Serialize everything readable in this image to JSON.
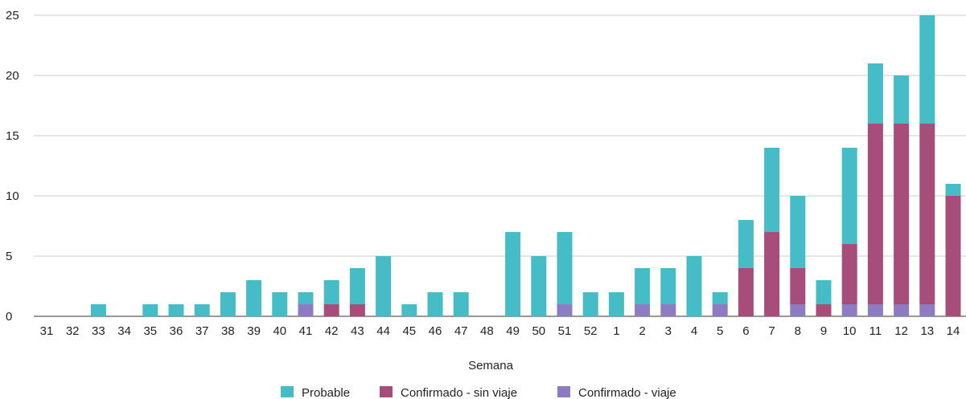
{
  "chart_data": {
    "type": "bar",
    "stacked": true,
    "categories": [
      "31",
      "32",
      "33",
      "34",
      "35",
      "36",
      "37",
      "38",
      "39",
      "40",
      "41",
      "42",
      "43",
      "44",
      "45",
      "46",
      "47",
      "48",
      "49",
      "50",
      "51",
      "52",
      "1",
      "2",
      "3",
      "4",
      "5",
      "6",
      "7",
      "8",
      "9",
      "10",
      "11",
      "12",
      "13",
      "14"
    ],
    "series": [
      {
        "name": "Confirmado - viaje",
        "color": "#8e7cc3",
        "values": [
          0,
          0,
          0,
          0,
          0,
          0,
          0,
          0,
          0,
          0,
          1,
          0,
          0,
          0,
          0,
          0,
          0,
          0,
          0,
          0,
          1,
          0,
          0,
          1,
          1,
          0,
          1,
          0,
          0,
          1,
          0,
          1,
          1,
          1,
          1,
          0
        ]
      },
      {
        "name": "Confirmado - sin viaje",
        "color": "#a64d79",
        "values": [
          0,
          0,
          0,
          0,
          0,
          0,
          0,
          0,
          0,
          0,
          0,
          1,
          1,
          0,
          0,
          0,
          0,
          0,
          0,
          0,
          0,
          0,
          0,
          0,
          0,
          0,
          0,
          4,
          7,
          3,
          1,
          5,
          15,
          15,
          15,
          10
        ]
      },
      {
        "name": "Probable",
        "color": "#45bcc6",
        "values": [
          0,
          0,
          1,
          0,
          1,
          1,
          1,
          2,
          3,
          2,
          1,
          2,
          3,
          5,
          1,
          2,
          2,
          0,
          7,
          5,
          6,
          2,
          2,
          3,
          3,
          5,
          1,
          4,
          7,
          6,
          2,
          8,
          5,
          4,
          9,
          1
        ]
      }
    ],
    "legend_order": [
      "Probable",
      "Confirmado - sin viaje",
      "Confirmado - viaje"
    ],
    "xlabel": "Semana",
    "ylabel": "",
    "ylim": [
      0,
      25
    ],
    "yticks": [
      0,
      5,
      10,
      15,
      20,
      25
    ],
    "grid": true,
    "legend_position": "bottom"
  }
}
